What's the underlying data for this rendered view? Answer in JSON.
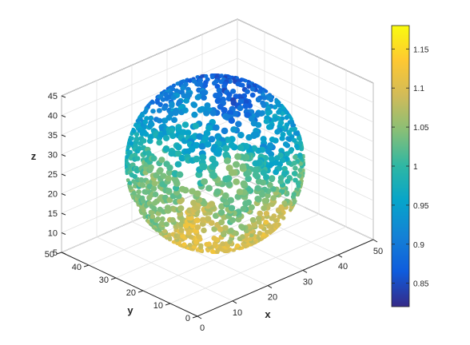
{
  "chart_data": {
    "type": "scatter",
    "title": "",
    "xlabel": "x",
    "ylabel": "y",
    "zlabel": "z",
    "xlim": [
      0,
      50
    ],
    "ylim": [
      0,
      50
    ],
    "zlim": [
      5,
      45
    ],
    "x_ticks": [
      "0",
      "10",
      "20",
      "30",
      "40",
      "50"
    ],
    "y_ticks": [
      "0",
      "10",
      "20",
      "30",
      "40",
      "50"
    ],
    "z_ticks": [
      "5",
      "10",
      "15",
      "20",
      "25",
      "30",
      "35",
      "40",
      "45"
    ],
    "grid": true,
    "sphere": {
      "center": [
        25,
        25,
        25
      ],
      "radius": 20
    },
    "colorbar": {
      "clim": [
        0.82,
        1.18
      ],
      "ticks": [
        "0.85",
        "0.9",
        "0.95",
        "1",
        "1.05",
        "1.1",
        "1.15"
      ],
      "colormap": "parula",
      "colors": [
        "#352a87",
        "#0f5cdd",
        "#1481d6",
        "#06a4ca",
        "#2eb7a4",
        "#87bf77",
        "#d1bb59",
        "#fec832",
        "#f9fb0e"
      ]
    }
  }
}
